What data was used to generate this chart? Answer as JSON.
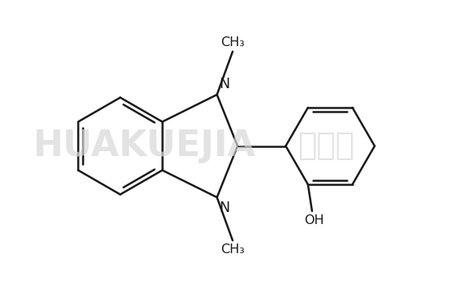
{
  "background_color": "#ffffff",
  "bond_color": "#1a1a1a",
  "text_color": "#1a1a1a",
  "font_family": "DejaVu Sans",
  "label_fontsize": 11.5,
  "line_width": 1.8,
  "watermark_color": "#d8d8d8",
  "watermark_fontsize": 32,
  "fig_width": 5.81,
  "fig_height": 3.61,
  "dpi": 100,
  "xlim": [
    0,
    10
  ],
  "ylim": [
    0,
    7
  ]
}
